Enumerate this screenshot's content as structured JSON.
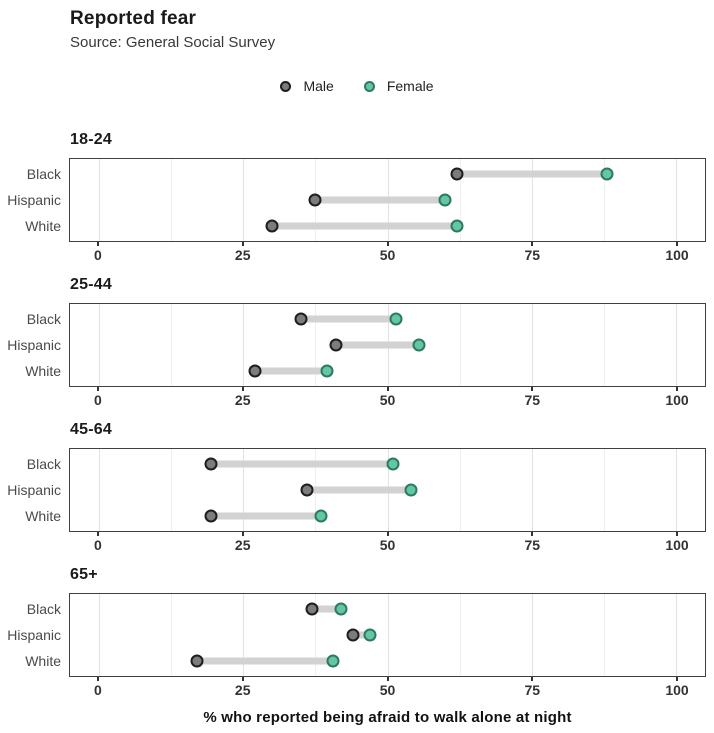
{
  "header": {
    "title": "Reported fear",
    "subtitle": "Source: General Social Survey"
  },
  "legend": {
    "items": [
      {
        "label": "Male"
      },
      {
        "label": "Female"
      }
    ]
  },
  "caption": "% who reported being afraid to walk alone at night",
  "chart_data": {
    "type": "dumbbell",
    "title": "Reported fear",
    "subtitle": "Source: General Social Survey",
    "xlabel": "% who reported being afraid to walk alone at night",
    "xlim": [
      -5,
      105
    ],
    "x_major_ticks": [
      0,
      25,
      50,
      75,
      100
    ],
    "x_minor_ticks": [
      12.5,
      37.5,
      62.5,
      87.5
    ],
    "grid": "vertical",
    "legend_position": "top-center",
    "series_names": [
      "Male",
      "Female"
    ],
    "row_positions_pct": [
      18.75,
      50,
      81.25
    ],
    "facets": [
      {
        "label": "18-24",
        "rows": [
          {
            "group": "Black",
            "male": 62,
            "female": 88
          },
          {
            "group": "Hispanic",
            "male": 37.5,
            "female": 60
          },
          {
            "group": "White",
            "male": 30,
            "female": 62
          }
        ]
      },
      {
        "label": "25-44",
        "rows": [
          {
            "group": "Black",
            "male": 35,
            "female": 51.5
          },
          {
            "group": "Hispanic",
            "male": 41,
            "female": 55.5
          },
          {
            "group": "White",
            "male": 27,
            "female": 39.5
          }
        ]
      },
      {
        "label": "45-64",
        "rows": [
          {
            "group": "Black",
            "male": 19.5,
            "female": 51
          },
          {
            "group": "Hispanic",
            "male": 36,
            "female": 54
          },
          {
            "group": "White",
            "male": 19.5,
            "female": 38.5
          }
        ]
      },
      {
        "label": "65+",
        "rows": [
          {
            "group": "Black",
            "male": 37,
            "female": 42
          },
          {
            "group": "Hispanic",
            "male": 44,
            "female": 47
          },
          {
            "group": "White",
            "male": 17,
            "female": 40.5
          }
        ]
      }
    ],
    "colors": {
      "male_fill": "#7c7c7c",
      "male_stroke": "#1e1e1e",
      "female_fill": "#63c6a4",
      "female_stroke": "#2c7a5f",
      "bar": "#d2d2d2",
      "grid_major": "#e2e2e2",
      "grid_minor": "#efefef",
      "panel_border": "#404040",
      "tick_label": "#333333"
    }
  }
}
